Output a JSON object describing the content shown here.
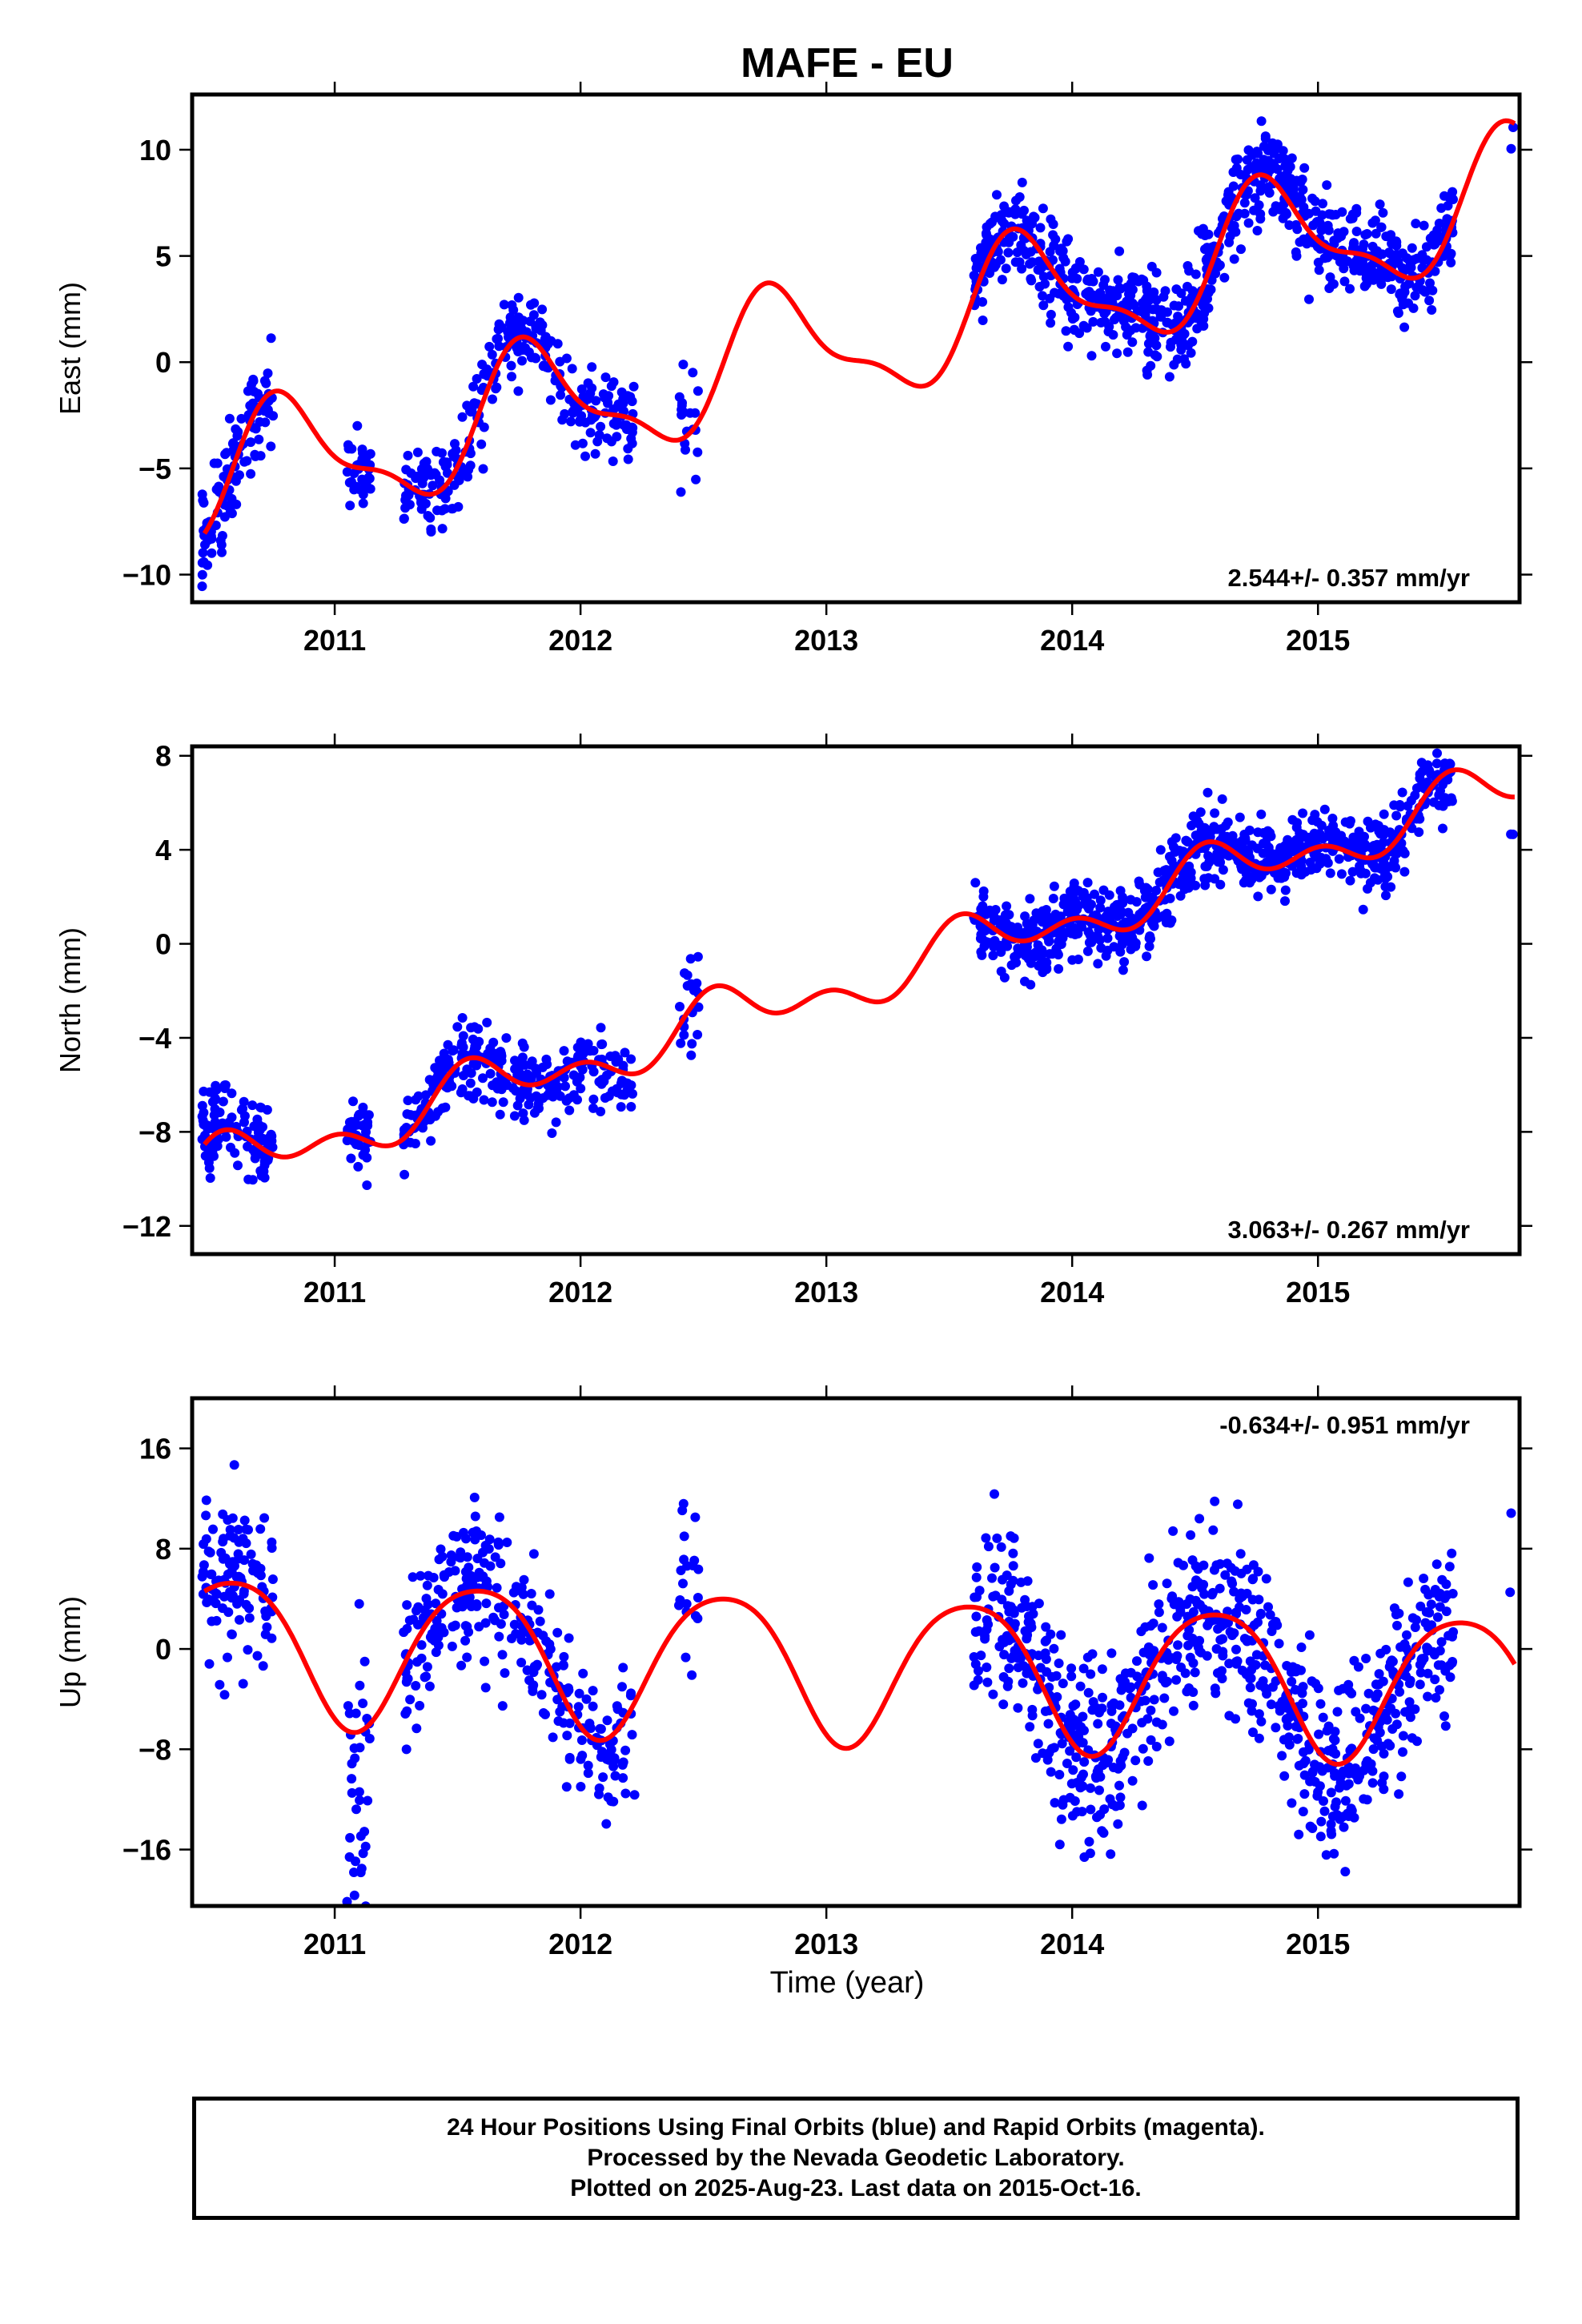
{
  "title": "MAFE - EU",
  "xlabel": "Time (year)",
  "footer": {
    "line1": "24 Hour Positions Using Final Orbits (blue) and Rapid Orbits (magenta).",
    "line2": "Processed by the Nevada Geodetic Laboratory.",
    "line3": "Plotted on 2025-Aug-23. Last data on 2015-Oct-16."
  },
  "colors": {
    "observations": "#0000ff",
    "model": "#ff0000"
  },
  "chart_data": [
    {
      "type": "scatter",
      "ylabel": "East (mm)",
      "rate_label": "2.544+/- 0.357 mm/yr",
      "xlim": [
        2010.42,
        2015.82
      ],
      "ylim": [
        -11.3,
        12.6
      ],
      "yticks": [
        -10,
        -5,
        0,
        5,
        10
      ],
      "xticks": [
        2011,
        2012,
        2013,
        2014,
        2015
      ],
      "model": {
        "base": -5.64,
        "rate": 2.544,
        "t0": 2010.5,
        "amp1": 2.8,
        "ph1": 0.55,
        "amp2": 1.0,
        "ph2": 0.1
      },
      "segments": [
        {
          "x": [
            2010.46,
            2010.75
          ],
          "count": 110,
          "offset": -0.3,
          "spread": 1.3
        },
        {
          "x": [
            2011.05,
            2011.15
          ],
          "count": 35,
          "offset": 0.0,
          "spread": 0.9
        },
        {
          "x": [
            2011.28,
            2011.88
          ],
          "count": 200,
          "offset": 0.2,
          "spread": 1.1
        },
        {
          "x": [
            2011.88,
            2012.22
          ],
          "count": 90,
          "offset": -0.3,
          "spread": 1.0
        },
        {
          "x": [
            2012.4,
            2012.48
          ],
          "count": 20,
          "offset": 1.0,
          "spread": 1.6
        },
        {
          "x": [
            2013.6,
            2014.62
          ],
          "count": 420,
          "offset": 0.2,
          "spread": 1.1
        },
        {
          "x": [
            2014.62,
            2015.18
          ],
          "count": 220,
          "offset": 0.3,
          "spread": 1.1
        },
        {
          "x": [
            2015.18,
            2015.55
          ],
          "count": 150,
          "offset": 0.2,
          "spread": 1.0
        },
        {
          "x": [
            2015.78,
            2015.8
          ],
          "count": 2,
          "offset": -1.0,
          "spread": 1.5
        }
      ]
    },
    {
      "type": "scatter",
      "ylabel": "North (mm)",
      "rate_label": "3.063+/- 0.267 mm/yr",
      "xlim": [
        2010.42,
        2015.82
      ],
      "ylim": [
        -13.2,
        8.4
      ],
      "yticks": [
        -12,
        -8,
        -4,
        0,
        4,
        8
      ],
      "xticks": [
        2011,
        2012,
        2013,
        2014,
        2015
      ],
      "model": {
        "base": -9.6,
        "rate": 3.063,
        "t0": 2010.5,
        "amp1": 0.9,
        "ph1": 0.35,
        "amp2": 0.7,
        "ph2": 0.9
      },
      "segments": [
        {
          "x": [
            2010.46,
            2010.75
          ],
          "count": 110,
          "offset": 0.3,
          "spread": 0.9
        },
        {
          "x": [
            2011.05,
            2011.15
          ],
          "count": 35,
          "offset": 0.2,
          "spread": 0.8
        },
        {
          "x": [
            2011.28,
            2011.88
          ],
          "count": 200,
          "offset": 0.1,
          "spread": 0.8
        },
        {
          "x": [
            2011.88,
            2012.22
          ],
          "count": 90,
          "offset": -0.3,
          "spread": 0.8
        },
        {
          "x": [
            2012.4,
            2012.48
          ],
          "count": 20,
          "offset": 0.5,
          "spread": 1.0
        },
        {
          "x": [
            2013.6,
            2014.62
          ],
          "count": 420,
          "offset": 0.0,
          "spread": 0.8
        },
        {
          "x": [
            2014.62,
            2015.18
          ],
          "count": 220,
          "offset": 0.3,
          "spread": 0.7
        },
        {
          "x": [
            2015.18,
            2015.55
          ],
          "count": 150,
          "offset": 0.1,
          "spread": 0.8
        },
        {
          "x": [
            2015.78,
            2015.8
          ],
          "count": 2,
          "offset": -0.5,
          "spread": 1.2
        }
      ]
    },
    {
      "type": "scatter",
      "ylabel": "Up (mm)",
      "rate_label": "-0.634+/- 0.951 mm/yr",
      "xlim": [
        2010.42,
        2015.82
      ],
      "ylim": [
        -20.5,
        20.0
      ],
      "yticks": [
        -16,
        -8,
        0,
        8,
        16
      ],
      "xticks": [
        2011,
        2012,
        2013,
        2014,
        2015
      ],
      "model": {
        "base": 0.3,
        "rate": -0.634,
        "t0": 2010.5,
        "amp1": 5.8,
        "ph1": 0.33,
        "amp2": 0.8,
        "ph2": 0.2
      },
      "segments": [
        {
          "x": [
            2010.46,
            2010.75
          ],
          "count": 110,
          "offset": 0.0,
          "spread": 3.3
        },
        {
          "x": [
            2011.05,
            2011.15
          ],
          "count": 35,
          "offset": -4.0,
          "spread": 4.5
        },
        {
          "x": [
            2011.28,
            2011.88
          ],
          "count": 200,
          "offset": 0.0,
          "spread": 3.2
        },
        {
          "x": [
            2011.88,
            2012.22
          ],
          "count": 90,
          "offset": -0.5,
          "spread": 3.0
        },
        {
          "x": [
            2012.4,
            2012.48
          ],
          "count": 20,
          "offset": 3.0,
          "spread": 3.5
        },
        {
          "x": [
            2013.6,
            2014.62
          ],
          "count": 420,
          "offset": 0.0,
          "spread": 3.6
        },
        {
          "x": [
            2014.62,
            2015.18
          ],
          "count": 220,
          "offset": -0.5,
          "spread": 3.4
        },
        {
          "x": [
            2015.18,
            2015.55
          ],
          "count": 150,
          "offset": -0.5,
          "spread": 3.3
        },
        {
          "x": [
            2015.78,
            2015.8
          ],
          "count": 2,
          "offset": 4.0,
          "spread": 8.0
        }
      ]
    }
  ]
}
